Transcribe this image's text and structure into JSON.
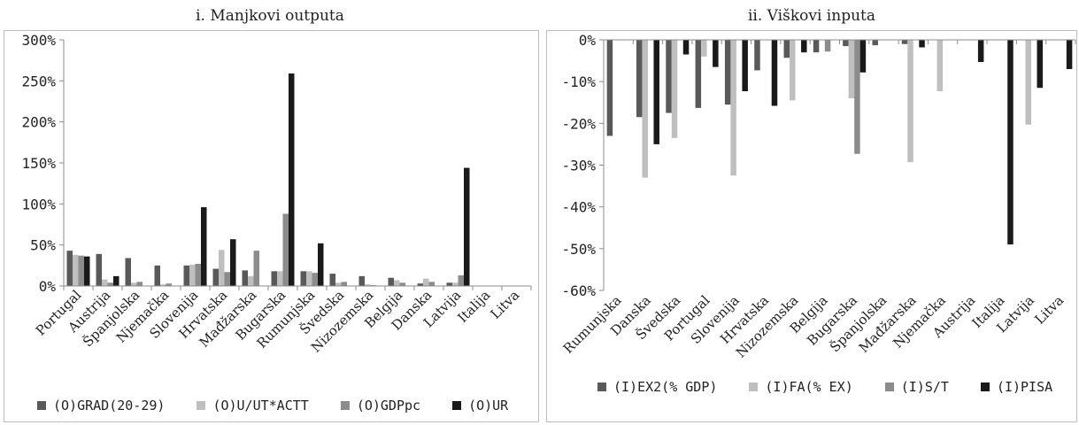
{
  "chart_data": [
    {
      "type": "bar",
      "title": "i. Manjkovi outputa",
      "categories": [
        "Portugal",
        "Austrija",
        "Španjolska",
        "Njemačka",
        "Slovenija",
        "Hrvatska",
        "Mađžarska",
        "Bugarska",
        "Rumunjska",
        "Švedska",
        "Nizozemska",
        "Belgija",
        "Danska",
        "Latvija",
        "Italija",
        "Litva"
      ],
      "ylim": [
        0,
        300
      ],
      "yticks": [
        "0%",
        "50%",
        "100%",
        "150%",
        "200%",
        "250%",
        "300%"
      ],
      "ytick_values": [
        0,
        50,
        100,
        150,
        200,
        250,
        300
      ],
      "series": [
        {
          "name": "(O)GRAD(20-29)",
          "color": "#595959",
          "values": [
            43,
            39,
            34,
            25,
            25,
            21,
            19,
            18,
            18,
            15,
            12,
            10,
            3,
            4,
            0,
            0
          ]
        },
        {
          "name": "(O)U/UT*ACTT",
          "color": "#bfbfbf",
          "values": [
            38,
            8,
            4,
            2,
            26,
            44,
            12,
            18,
            18,
            4,
            2,
            7,
            9,
            4,
            0,
            0
          ]
        },
        {
          "name": "(O)GDPpc",
          "color": "#8c8c8c",
          "values": [
            37,
            4,
            5,
            3,
            27,
            17,
            43,
            88,
            16,
            5,
            1,
            4,
            5,
            13,
            0,
            0
          ]
        },
        {
          "name": "(O)UR",
          "color": "#1a1a1a",
          "values": [
            36,
            12,
            0,
            0,
            96,
            57,
            0,
            259,
            52,
            0,
            0,
            0,
            0,
            144,
            0,
            0
          ]
        }
      ]
    },
    {
      "type": "bar",
      "title": "ii. Viškovi inputa",
      "categories": [
        "Rumunjska",
        "Danska",
        "Švedska",
        "Portugal",
        "Slovenija",
        "Hrvatska",
        "Nizozemska",
        "Belgija",
        "Bugarska",
        "Španjolska",
        "Mađžarska",
        "Njemačka",
        "Austrija",
        "Italija",
        "Latvija",
        "Litva"
      ],
      "ylim": [
        -60,
        0
      ],
      "yticks": [
        "0%",
        "-10%",
        "-20%",
        "-30%",
        "-40%",
        "-50%",
        "-60%"
      ],
      "ytick_values": [
        0,
        -10,
        -20,
        -30,
        -40,
        -50,
        -60
      ],
      "series": [
        {
          "name": "(I)EX2(% GDP)",
          "color": "#595959",
          "values": [
            -23,
            -18.5,
            -17.5,
            -16.3,
            -15.5,
            -7.3,
            -4.3,
            -3,
            -1.5,
            -1.3,
            -1,
            0,
            0,
            0,
            0,
            0
          ]
        },
        {
          "name": "(I)FA(% EX)",
          "color": "#bfbfbf",
          "values": [
            0,
            -33,
            -23.5,
            -4,
            -32.5,
            0,
            -14.5,
            0,
            -14,
            0,
            -29.3,
            -12.3,
            0,
            0,
            -20.3,
            0
          ]
        },
        {
          "name": "(I)S/T",
          "color": "#8c8c8c",
          "values": [
            0,
            0,
            0,
            0,
            0,
            0,
            0,
            -2.8,
            -27.3,
            0,
            0,
            0,
            0,
            0,
            0,
            0
          ]
        },
        {
          "name": "(I)PISA",
          "color": "#1a1a1a",
          "values": [
            0,
            -25,
            -3.5,
            -6.5,
            -12.3,
            -15.8,
            -3,
            0,
            -7.8,
            0,
            -1.8,
            0,
            -5.3,
            -49,
            -11.5,
            -7
          ]
        }
      ]
    }
  ]
}
